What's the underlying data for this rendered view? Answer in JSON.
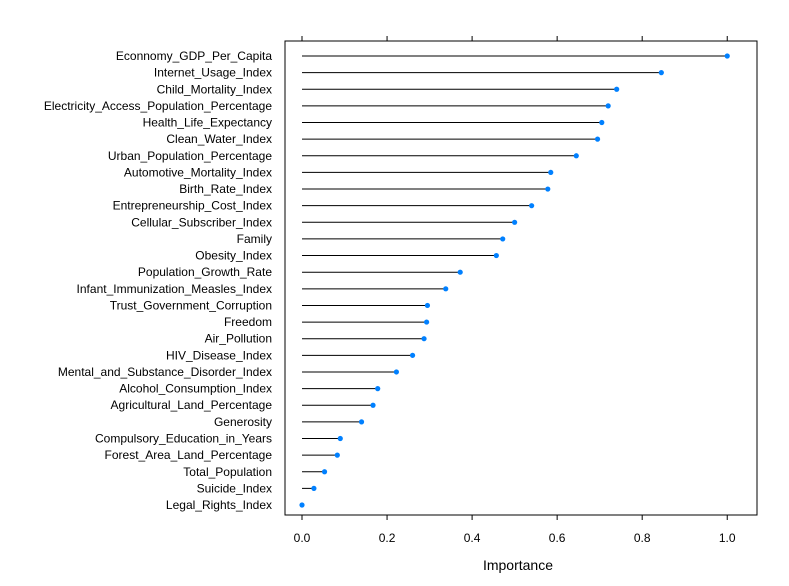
{
  "chart_data": {
    "type": "dot",
    "xlabel": "Importance",
    "ylabel": "",
    "xlim": [
      -0.04,
      1.07
    ],
    "x_ticks": [
      0.0,
      0.2,
      0.4,
      0.6,
      0.8,
      1.0
    ],
    "x_tick_labels": [
      "0.0",
      "0.2",
      "0.4",
      "0.6",
      "0.8",
      "1.0"
    ],
    "grid": false,
    "point_color": "#0080FF",
    "line_color": "#000000",
    "categories": [
      "Econnomy_GDP_Per_Capita",
      "Internet_Usage_Index",
      "Child_Mortality_Index",
      "Electricity_Access_Population_Percentage",
      "Health_Life_Expectancy",
      "Clean_Water_Index",
      "Urban_Population_Percentage",
      "Automotive_Mortality_Index",
      "Birth_Rate_Index",
      "Entrepreneurship_Cost_Index",
      "Cellular_Subscriber_Index",
      "Family",
      "Obesity_Index",
      "Population_Growth_Rate",
      "Infant_Immunization_Measles_Index",
      "Trust_Government_Corruption",
      "Freedom",
      "Air_Pollution",
      "HIV_Disease_Index",
      "Mental_and_Substance_Disorder_Index",
      "Alcohol_Consumption_Index",
      "Agricultural_Land_Percentage",
      "Generosity",
      "Compulsory_Education_in_Years",
      "Forest_Area_Land_Percentage",
      "Total_Population",
      "Suicide_Index",
      "Legal_Rights_Index"
    ],
    "values": [
      1.0,
      0.845,
      0.74,
      0.72,
      0.705,
      0.695,
      0.645,
      0.585,
      0.578,
      0.54,
      0.5,
      0.472,
      0.457,
      0.372,
      0.338,
      0.295,
      0.293,
      0.287,
      0.26,
      0.222,
      0.178,
      0.167,
      0.14,
      0.09,
      0.083,
      0.053,
      0.028,
      0.0
    ]
  }
}
